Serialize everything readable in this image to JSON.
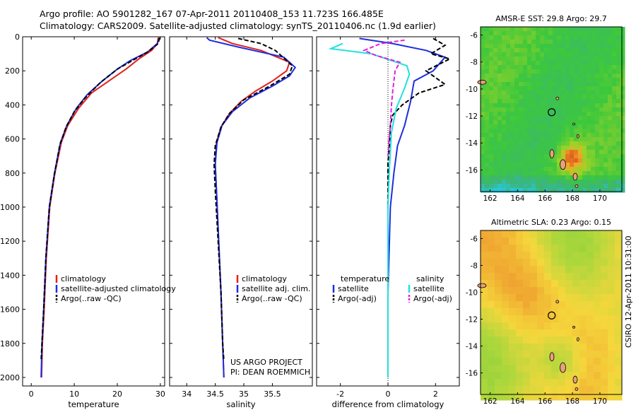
{
  "header": {
    "line1": "Argo profile: AO 5901282_167 07-Apr-2011 20110408_153 11.723S 166.485E",
    "line2": "Climatology: CARS2009. Satellite-adjusted climatology: synTS_20110406.nc (1.9d earlier)"
  },
  "side_label": "CSIRO 12-Apr-2011 10:31:00",
  "colors": {
    "red": "#e02020",
    "blue": "#1d2ee0",
    "black": "#000000",
    "cyan": "#22e0e0",
    "magenta": "#e020e0"
  },
  "chart_data": [
    {
      "type": "line",
      "id": "temperature",
      "xlabel": "temperature",
      "xlim": [
        -2,
        31
      ],
      "ylim": [
        2050,
        0
      ],
      "xticks": [
        0,
        10,
        20,
        30
      ],
      "yticks": [
        0,
        200,
        400,
        600,
        800,
        1000,
        1200,
        1400,
        1600,
        1800,
        2000
      ],
      "legend": {
        "placement": "bottom-right",
        "entries": [
          "climatology",
          "satellite-adjusted climatology",
          "Argo(..raw -QC)"
        ]
      },
      "series": [
        {
          "name": "climatology",
          "color": "red",
          "dash": "",
          "points": [
            [
              29.5,
              5
            ],
            [
              29.3,
              40
            ],
            [
              28,
              80
            ],
            [
              25,
              130
            ],
            [
              22,
              190
            ],
            [
              18,
              260
            ],
            [
              14,
              330
            ],
            [
              11,
              420
            ],
            [
              8.5,
              520
            ],
            [
              7,
              620
            ],
            [
              5.5,
              800
            ],
            [
              4.3,
              1000
            ],
            [
              3.5,
              1300
            ],
            [
              3,
              1600
            ],
            [
              2.6,
              1800
            ],
            [
              2.4,
              2000
            ]
          ]
        },
        {
          "name": "satellite-adjusted climatology",
          "color": "blue",
          "dash": "",
          "points": [
            [
              29.8,
              5
            ],
            [
              29.3,
              40
            ],
            [
              27,
              90
            ],
            [
              23,
              140
            ],
            [
              20,
              190
            ],
            [
              16.5,
              260
            ],
            [
              13,
              340
            ],
            [
              10.5,
              420
            ],
            [
              8.3,
              520
            ],
            [
              6.8,
              620
            ],
            [
              5.4,
              800
            ],
            [
              4.2,
              1000
            ],
            [
              3.4,
              1300
            ],
            [
              2.9,
              1600
            ],
            [
              2.5,
              1800
            ],
            [
              2.3,
              2000
            ]
          ]
        },
        {
          "name": "Argo(..raw -QC)",
          "color": "black",
          "dash": "6,3",
          "points": [
            [
              29.8,
              5
            ],
            [
              29.5,
              40
            ],
            [
              27,
              90
            ],
            [
              23.5,
              140
            ],
            [
              20,
              190
            ],
            [
              16,
              270
            ],
            [
              12.5,
              360
            ],
            [
              10,
              440
            ],
            [
              8.1,
              530
            ],
            [
              6.6,
              640
            ],
            [
              5.3,
              820
            ],
            [
              4.2,
              1000
            ],
            [
              3.4,
              1300
            ],
            [
              2.9,
              1600
            ],
            [
              2.5,
              1800
            ],
            [
              2.3,
              1900
            ]
          ]
        }
      ]
    },
    {
      "type": "line",
      "id": "salinity",
      "xlabel": "salinity",
      "xlim": [
        33.7,
        36.2
      ],
      "ylim": [
        2050,
        0
      ],
      "xticks": [
        34,
        34.5,
        35,
        35.5
      ],
      "yticks": [
        0,
        200,
        400,
        600,
        800,
        1000,
        1200,
        1400,
        1600,
        1800,
        2000
      ],
      "legend": {
        "placement": "bottom-right",
        "entries": [
          "climatology",
          "satellite adj. clim.",
          "Argo(..raw -QC)"
        ]
      },
      "annotation": [
        "US ARGO PROJECT",
        "PI: DEAN ROEMMICH"
      ],
      "series": [
        {
          "name": "climatology",
          "color": "red",
          "dash": "",
          "points": [
            [
              34.55,
              5
            ],
            [
              34.8,
              40
            ],
            [
              35.3,
              80
            ],
            [
              35.8,
              150
            ],
            [
              35.75,
              200
            ],
            [
              35.5,
              260
            ],
            [
              35.2,
              320
            ],
            [
              34.95,
              380
            ],
            [
              34.75,
              450
            ],
            [
              34.6,
              530
            ],
            [
              34.52,
              620
            ],
            [
              34.5,
              750
            ],
            [
              34.52,
              900
            ],
            [
              34.56,
              1200
            ],
            [
              34.6,
              1500
            ],
            [
              34.63,
              1800
            ],
            [
              34.65,
              2000
            ]
          ]
        },
        {
          "name": "satellite adj. clim.",
          "color": "blue",
          "dash": "",
          "points": [
            [
              34.35,
              5
            ],
            [
              34.4,
              20
            ],
            [
              34.9,
              60
            ],
            [
              35.7,
              120
            ],
            [
              35.9,
              180
            ],
            [
              35.8,
              230
            ],
            [
              35.5,
              290
            ],
            [
              35.1,
              360
            ],
            [
              34.8,
              440
            ],
            [
              34.62,
              520
            ],
            [
              34.53,
              620
            ],
            [
              34.5,
              750
            ],
            [
              34.52,
              900
            ],
            [
              34.56,
              1200
            ],
            [
              34.6,
              1500
            ],
            [
              34.63,
              1800
            ],
            [
              34.65,
              2000
            ]
          ]
        },
        {
          "name": "Argo(..raw -QC)",
          "color": "black",
          "dash": "6,3",
          "points": [
            [
              34.9,
              10
            ],
            [
              35.3,
              40
            ],
            [
              35.55,
              80
            ],
            [
              35.85,
              170
            ],
            [
              35.8,
              220
            ],
            [
              35.45,
              290
            ],
            [
              35.0,
              370
            ],
            [
              34.75,
              450
            ],
            [
              34.6,
              530
            ],
            [
              34.5,
              640
            ],
            [
              34.48,
              750
            ],
            [
              34.5,
              900
            ],
            [
              34.55,
              1200
            ],
            [
              34.6,
              1500
            ],
            [
              34.63,
              1800
            ],
            [
              34.65,
              1900
            ]
          ]
        }
      ]
    },
    {
      "type": "line",
      "id": "difference",
      "xlabel": "difference from climatology",
      "xlim": [
        -3,
        3
      ],
      "ylim": [
        2050,
        0
      ],
      "xticks": [
        -2,
        0,
        2
      ],
      "yticks": [
        0,
        200,
        400,
        600,
        800,
        1000,
        1200,
        1400,
        1600,
        1800,
        2000
      ],
      "legend": {
        "placement": "bottom",
        "entries": [
          "temperature",
          "satellite",
          "Argo(-adj)",
          "salinity",
          "satellite",
          "Argo(-adj)"
        ]
      },
      "series": [
        {
          "name": "temperature satellite",
          "color": "blue",
          "dash": "",
          "points": [
            [
              -1.2,
              10
            ],
            [
              0.2,
              40
            ],
            [
              1.6,
              80
            ],
            [
              2.4,
              120
            ],
            [
              1.9,
              200
            ],
            [
              1.1,
              260
            ],
            [
              0.95,
              380
            ],
            [
              0.7,
              520
            ],
            [
              0.4,
              640
            ],
            [
              0.25,
              800
            ],
            [
              0.1,
              1000
            ],
            [
              0,
              1500
            ],
            [
              0,
              2000
            ]
          ]
        },
        {
          "name": "temperature Argo(-adj)",
          "color": "black",
          "dash": "6,3",
          "points": [
            [
              1.9,
              10
            ],
            [
              2.4,
              50
            ],
            [
              1.8,
              100
            ],
            [
              2.6,
              130
            ],
            [
              1.6,
              200
            ],
            [
              2.4,
              280
            ],
            [
              1.3,
              330
            ],
            [
              0.6,
              400
            ],
            [
              0.2,
              460
            ],
            [
              0.1,
              520
            ],
            [
              0.05,
              660
            ],
            [
              0,
              740
            ],
            [
              0,
              1000
            ]
          ]
        },
        {
          "name": "salinity satellite",
          "color": "cyan",
          "dash": "",
          "points": [
            [
              -1.9,
              40
            ],
            [
              -2.4,
              70
            ],
            [
              -0.7,
              100
            ],
            [
              0.8,
              170
            ],
            [
              0.9,
              220
            ],
            [
              0.7,
              300
            ],
            [
              0.35,
              420
            ],
            [
              0.15,
              560
            ],
            [
              0.05,
              800
            ],
            [
              0,
              1000
            ],
            [
              0,
              2000
            ]
          ]
        },
        {
          "name": "salinity Argo(-adj)",
          "color": "magenta",
          "dash": "6,3",
          "points": [
            [
              0.7,
              20
            ],
            [
              -0.3,
              40
            ],
            [
              -1.0,
              80
            ],
            [
              -0.5,
              110
            ],
            [
              0.5,
              150
            ],
            [
              0.3,
              200
            ],
            [
              0.2,
              320
            ],
            [
              0.15,
              400
            ],
            [
              0.1,
              520
            ],
            [
              0.05,
              600
            ],
            [
              0,
              700
            ]
          ]
        }
      ]
    },
    {
      "type": "heatmap",
      "id": "sst-map",
      "title": "AMSR-E SST: 29.8 Argo: 29.7",
      "xlim": [
        161.3,
        171.6
      ],
      "ylim": [
        -17.6,
        -5.4
      ],
      "xticks": [
        162,
        164,
        166,
        168,
        170
      ],
      "yticks": [
        -6,
        -8,
        -10,
        -12,
        -14,
        -16
      ],
      "argo_position": [
        166.485,
        -11.723
      ]
    },
    {
      "type": "heatmap",
      "id": "sla-map",
      "title": "Altimetric SLA: 0.23 Argo: 0.15",
      "xlim": [
        161.3,
        171.6
      ],
      "ylim": [
        -17.6,
        -5.4
      ],
      "xticks": [
        162,
        164,
        166,
        168,
        170
      ],
      "yticks": [
        -6,
        -8,
        -10,
        -12,
        -14,
        -16
      ],
      "argo_position": [
        166.485,
        -11.723
      ]
    }
  ]
}
